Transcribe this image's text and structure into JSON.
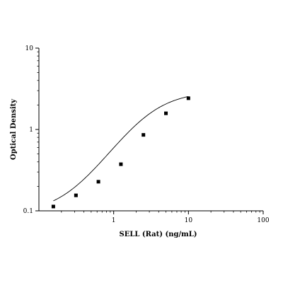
{
  "chart_data": {
    "type": "scatter",
    "title": "",
    "xlabel": "SELL (Rat) (ng/mL)",
    "ylabel": "Optical Density",
    "xscale": "log",
    "yscale": "log",
    "xlim": [
      0.1,
      100
    ],
    "ylim": [
      0.1,
      10
    ],
    "x_ticks": [
      {
        "value": 1,
        "label": "1"
      },
      {
        "value": 10,
        "label": "10"
      },
      {
        "value": 100,
        "label": "100"
      }
    ],
    "y_ticks": [
      {
        "value": 0.1,
        "label": "0.1"
      },
      {
        "value": 1,
        "label": "1"
      },
      {
        "value": 10,
        "label": "10"
      }
    ],
    "grid": false,
    "legend": "none",
    "series": [
      {
        "marker": "square",
        "color": "#000000",
        "x": [
          0.156,
          0.313,
          0.625,
          1.25,
          2.5,
          5,
          10
        ],
        "y": [
          0.113,
          0.155,
          0.228,
          0.374,
          0.858,
          1.58,
          2.42
        ]
      }
    ],
    "fit_curve": {
      "model": "4PL",
      "color": "#000000",
      "params": {
        "A": 0.092,
        "D": 2.95,
        "C": 2.9,
        "B": 1.45
      }
    }
  }
}
